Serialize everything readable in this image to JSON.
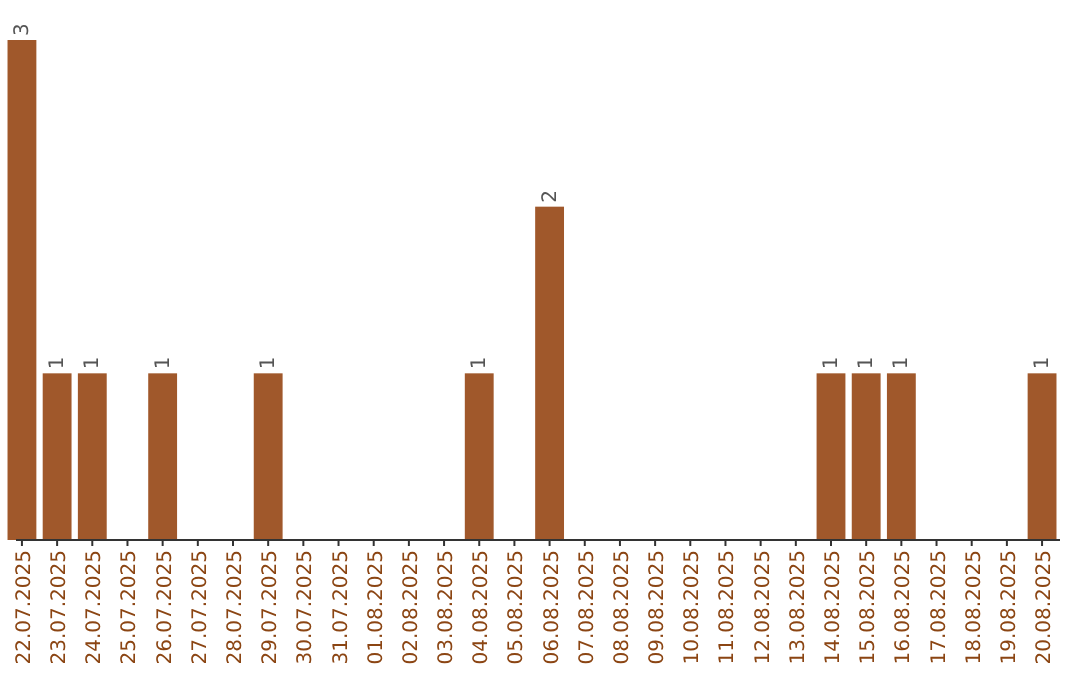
{
  "chart_data": {
    "type": "bar",
    "categories": [
      "22.07.2025",
      "23.07.2025",
      "24.07.2025",
      "25.07.2025",
      "26.07.2025",
      "27.07.2025",
      "28.07.2025",
      "29.07.2025",
      "30.07.2025",
      "31.07.2025",
      "01.08.2025",
      "02.08.2025",
      "03.08.2025",
      "04.08.2025",
      "05.08.2025",
      "06.08.2025",
      "07.08.2025",
      "08.08.2025",
      "09.08.2025",
      "10.08.2025",
      "11.08.2025",
      "12.08.2025",
      "13.08.2025",
      "14.08.2025",
      "15.08.2025",
      "16.08.2025",
      "17.08.2025",
      "18.08.2025",
      "19.08.2025",
      "20.08.2025"
    ],
    "values": [
      3,
      1,
      1,
      0,
      1,
      0,
      0,
      1,
      0,
      0,
      0,
      0,
      0,
      1,
      0,
      2,
      0,
      0,
      0,
      0,
      0,
      0,
      0,
      1,
      1,
      1,
      0,
      0,
      0,
      1
    ],
    "value_labels": [
      "3",
      "1",
      "1",
      null,
      "1",
      null,
      null,
      "1",
      null,
      null,
      null,
      null,
      null,
      "1",
      null,
      "2",
      null,
      null,
      null,
      null,
      null,
      null,
      null,
      "1",
      "1",
      "1",
      null,
      null,
      null,
      "1"
    ],
    "color": "#a0582b"
  }
}
